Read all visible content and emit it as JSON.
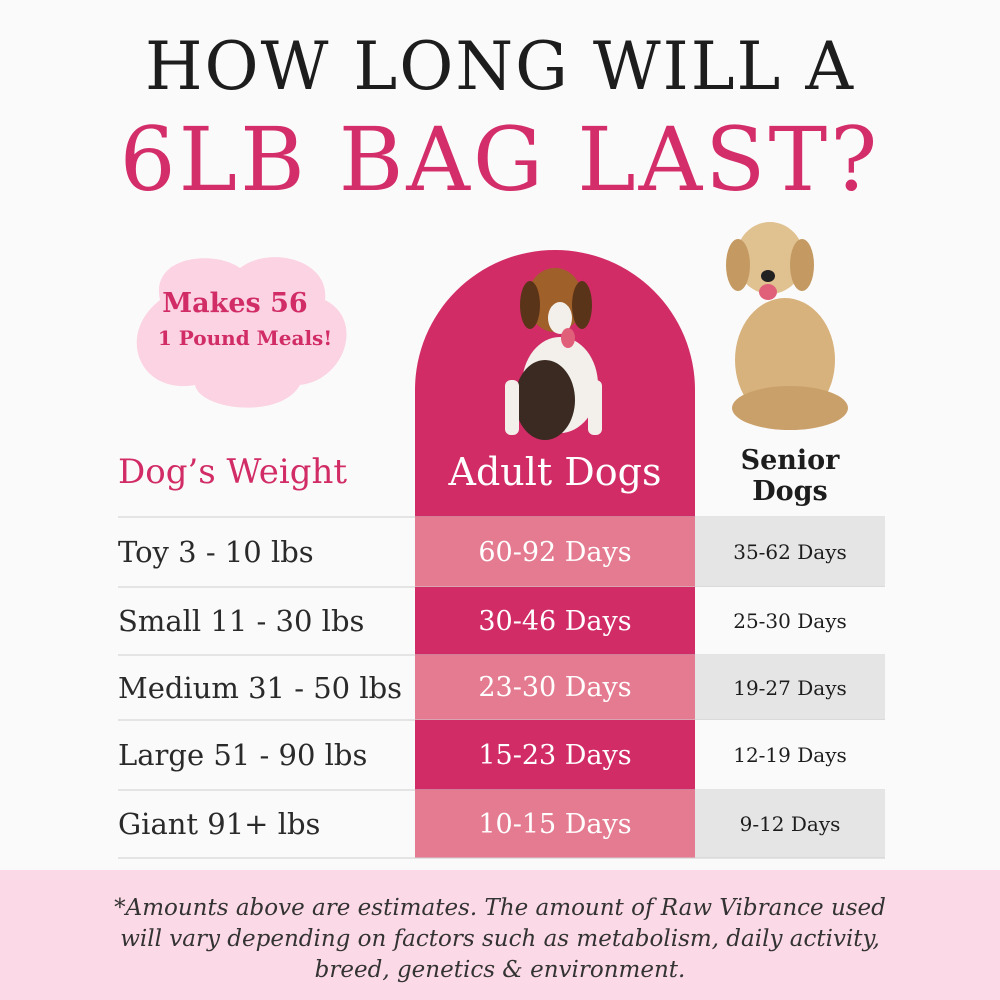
{
  "header": {
    "line1": "HOW LONG WILL A",
    "line2": "6LB BAG LAST?"
  },
  "badge": {
    "line1": "Makes 56",
    "line2": "1 Pound Meals!"
  },
  "table": {
    "columns": [
      "Dog’s Weight",
      "Adult Dogs",
      "Senior Dogs"
    ],
    "rows": [
      [
        "Toy 3 - 10 lbs",
        "60-92 Days",
        "35-62 Days"
      ],
      [
        "Small 11 - 30 lbs",
        "30-46 Days",
        "25-30 Days"
      ],
      [
        "Medium 31 - 50 lbs",
        "23-30 Days",
        "19-27 Days"
      ],
      [
        "Large 51 - 90 lbs",
        "15-23 Days",
        "12-19 Days"
      ],
      [
        "Giant 91+ lbs",
        "10-15 Days",
        "9-12 Days"
      ]
    ]
  },
  "footnote": {
    "lines": [
      "*Amounts above are estimates. The amount of Raw Vibrance used",
      "will vary depending on factors such as metabolism, daily activity,",
      "breed, genetics & environment."
    ]
  }
}
